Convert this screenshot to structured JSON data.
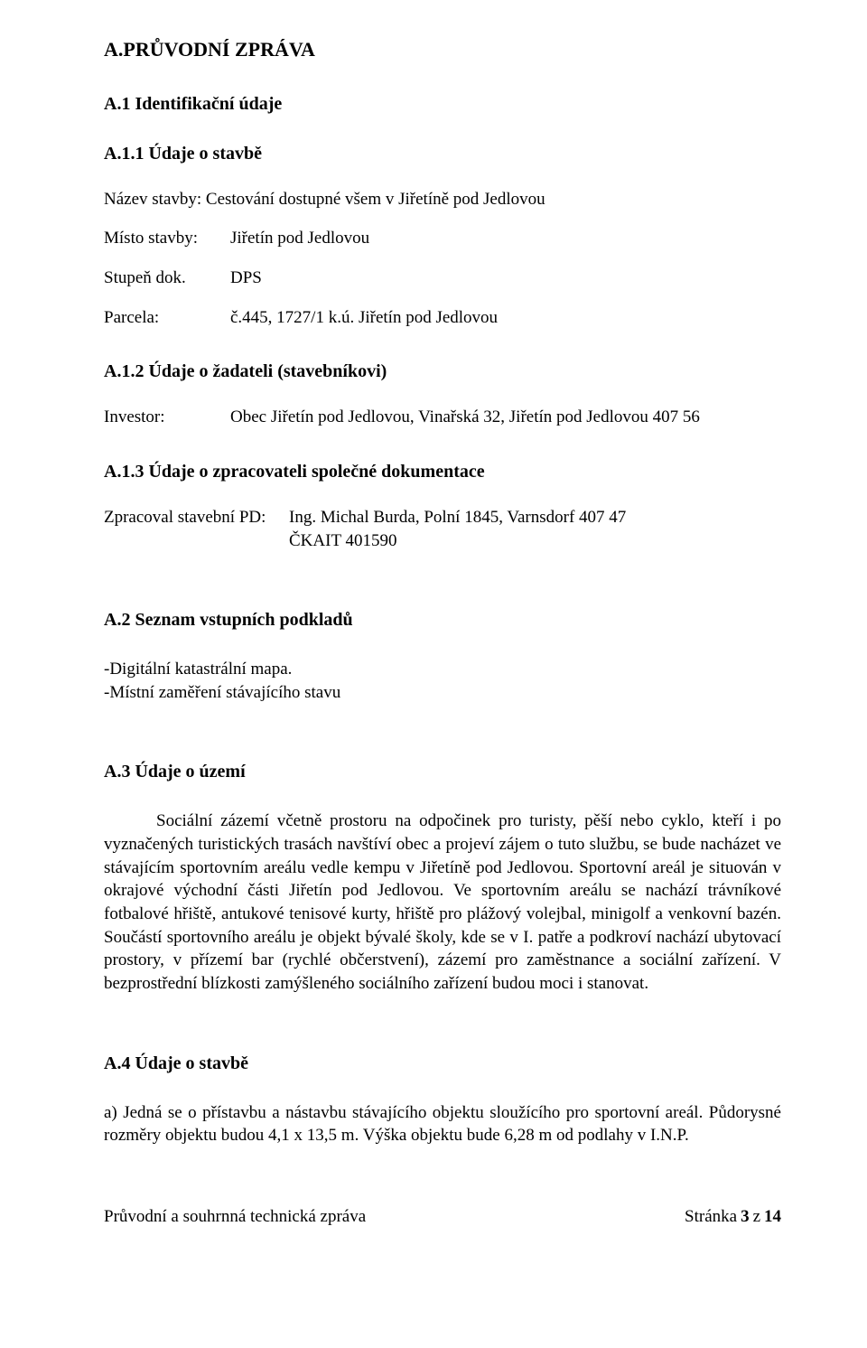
{
  "title_main": "A.PRŮVODNÍ ZPRÁVA",
  "a1": {
    "heading": "A.1 Identifikační údaje",
    "a11": {
      "heading": "A.1.1 Údaje o stavbě",
      "nazev_label": "Název stavby: Cestování dostupné všem v Jiřetíně pod Jedlovou",
      "rows": [
        {
          "label": "Místo stavby:",
          "value": "Jiřetín pod Jedlovou"
        },
        {
          "label": "Stupeň dok.",
          "value": "DPS"
        },
        {
          "label": "Parcela:",
          "value": "č.445, 1727/1 k.ú. Jiřetín pod Jedlovou"
        }
      ]
    },
    "a12": {
      "heading": "A.1.2 Údaje o žadateli (stavebníkovi)",
      "rows": [
        {
          "label": "Investor:",
          "value": "Obec Jiřetín pod Jedlovou, Vinařská 32, Jiřetín pod Jedlovou 407 56"
        }
      ]
    },
    "a13": {
      "heading": "A.1.3 Údaje o zpracovateli společné dokumentace",
      "rows": [
        {
          "label": "Zpracoval stavební PD:",
          "value1": "Ing. Michal Burda, Polní 1845, Varnsdorf 407 47",
          "value2": "ČKAIT 401590"
        }
      ]
    }
  },
  "a2": {
    "heading": "A.2 Seznam vstupních podkladů",
    "items": [
      "-Digitální katastrální mapa.",
      "-Místní zaměření stávajícího stavu"
    ]
  },
  "a3": {
    "heading": "A.3 Údaje o území",
    "paragraph": "Sociální zázemí včetně prostoru na odpočinek pro turisty, pěší nebo cyklo, kteří i po vyznačených turistických trasách navštíví obec a projeví zájem o tuto službu, se bude nacházet ve stávajícím  sportovním areálu vedle kempu v Jiřetíně pod Jedlovou. Sportovní areál je situován v okrajové východní části Jiřetín pod Jedlovou. Ve sportovním areálu se nachází trávníkové fotbalové hřiště, antukové tenisové kurty, hřiště pro plážový volejbal, minigolf a venkovní bazén. Součástí sportovního areálu je objekt bývalé školy, kde se v I. patře a podkroví nachází ubytovací prostory, v přízemí bar (rychlé občerstvení), zázemí pro zaměstnance a sociální zařízení. V bezprostřední blízkosti zamýšleného sociálního zařízení budou moci i stanovat."
  },
  "a4": {
    "heading": "A.4 Údaje o stavbě",
    "paragraph": "a) Jedná se o přístavbu a nástavbu stávajícího objektu sloužícího pro sportovní areál. Půdorysné rozměry objektu budou 4,1 x 13,5 m. Výška objektu bude 6,28 m od podlahy v I.N.P."
  },
  "footer": {
    "left": "Průvodní a souhrnná technická zpráva",
    "right_prefix": "Stránka ",
    "page_current": "3",
    "page_sep": " z ",
    "page_total": "14"
  }
}
